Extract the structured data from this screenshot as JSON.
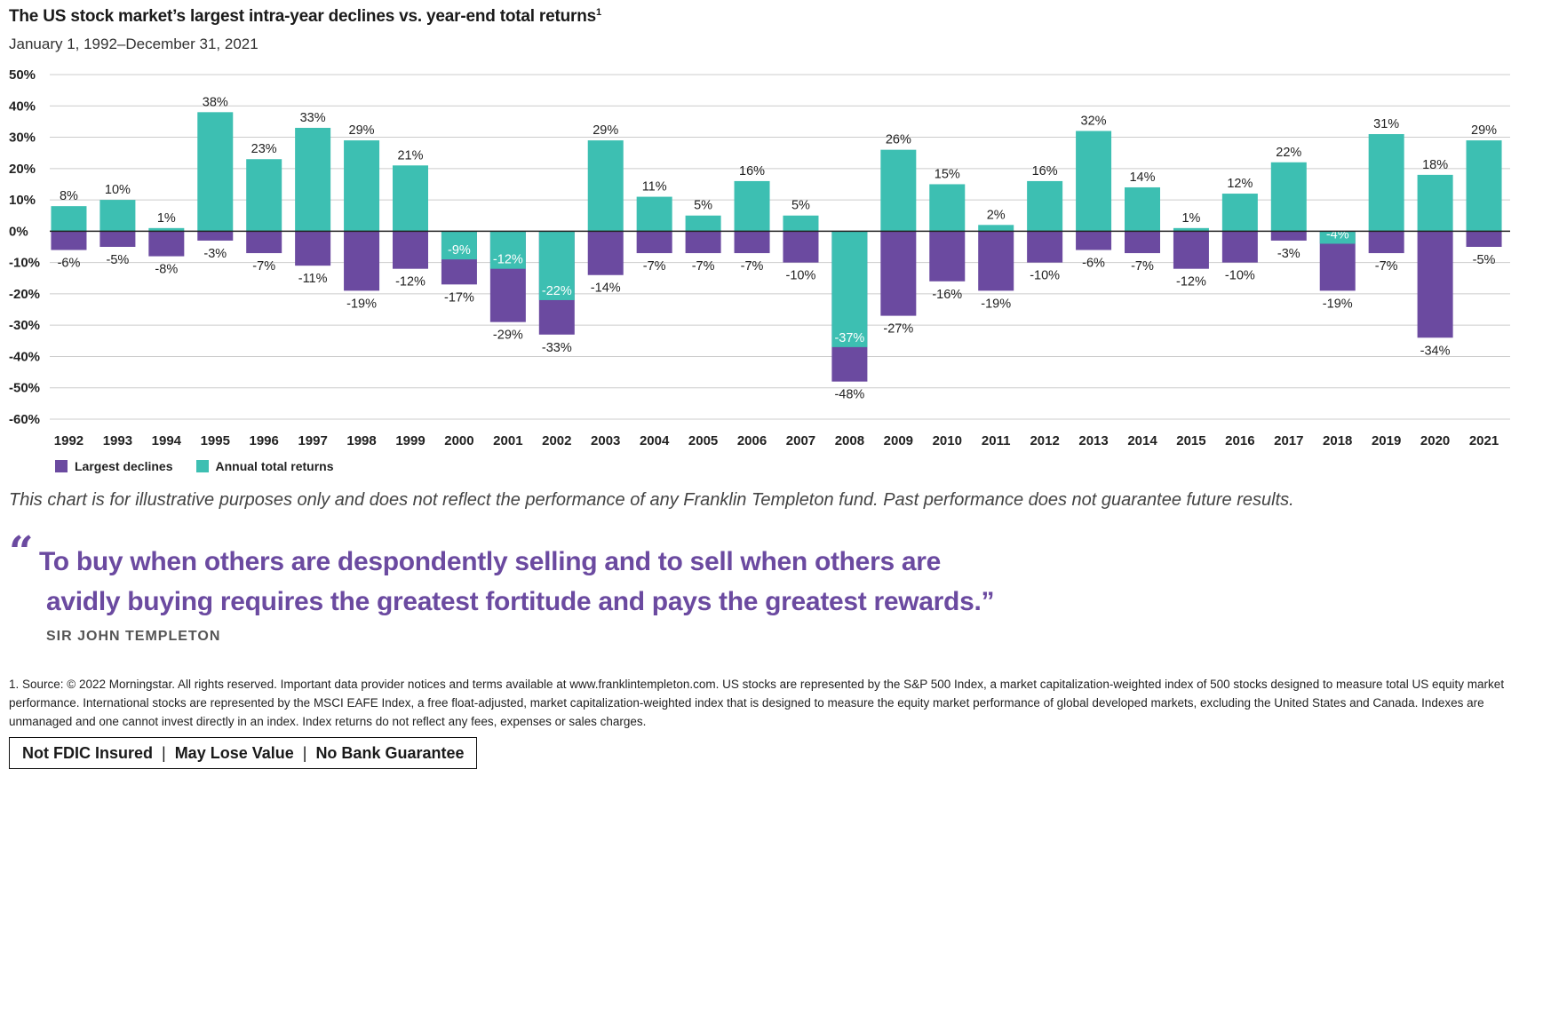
{
  "title": "The US stock market’s largest intra-year declines vs. year-end total returns",
  "title_footnote_marker": "1",
  "subtitle": "January 1, 1992–December 31, 2021",
  "colors": {
    "declines": "#6b4aa0",
    "returns": "#3dbfb2",
    "grid": "#cccccc",
    "zero_line": "#222222",
    "quote": "#6b4aa0"
  },
  "legend": {
    "declines_label": "Largest declines",
    "returns_label": "Annual total returns"
  },
  "chart_data": {
    "type": "bar",
    "ylim": [
      -60,
      50
    ],
    "y_ticks": [
      50,
      40,
      30,
      20,
      10,
      0,
      -10,
      -20,
      -30,
      -40,
      -50,
      -60
    ],
    "y_tick_labels": [
      "50%",
      "40%",
      "30%",
      "20%",
      "10%",
      "0%",
      "-10%",
      "-20%",
      "-30%",
      "-40%",
      "-50%",
      "-60%"
    ],
    "grid": true,
    "legend_position": "bottom-left",
    "categories": [
      "1992",
      "1993",
      "1994",
      "1995",
      "1996",
      "1997",
      "1998",
      "1999",
      "2000",
      "2001",
      "2002",
      "2003",
      "2004",
      "2005",
      "2006",
      "2007",
      "2008",
      "2009",
      "2010",
      "2011",
      "2012",
      "2013",
      "2014",
      "2015",
      "2016",
      "2017",
      "2018",
      "2019",
      "2020",
      "2021"
    ],
    "series": [
      {
        "name": "Largest declines",
        "values": [
          -6,
          -5,
          -8,
          -3,
          -7,
          -11,
          -19,
          -12,
          -17,
          -29,
          -33,
          -14,
          -7,
          -7,
          -7,
          -10,
          -48,
          -27,
          -16,
          -19,
          -10,
          -6,
          -7,
          -12,
          -10,
          -3,
          -19,
          -7,
          -34,
          -5
        ]
      },
      {
        "name": "Annual total returns",
        "values": [
          8,
          10,
          1,
          38,
          23,
          33,
          29,
          21,
          -9,
          -12,
          -22,
          29,
          11,
          5,
          16,
          5,
          -37,
          26,
          15,
          2,
          16,
          32,
          14,
          1,
          12,
          22,
          -4,
          31,
          18,
          29
        ]
      }
    ]
  },
  "disclaimer": "This chart is for illustrative purposes only and does not reflect the performance of any Franklin Templeton fund. Past performance does not guarantee future results.",
  "quote": {
    "open_mark": "“",
    "line1": "To buy when others are despondently selling and to sell when others are",
    "line2": "avidly buying requires the greatest fortitude and pays the greatest rewards.”",
    "author": "SIR JOHN TEMPLETON"
  },
  "footnote": "1. Source: © 2022 Morningstar. All rights reserved. Important data provider notices and terms available at www.franklintempleton.com. US stocks are represented by the S&P 500 Index, a market capitalization-weighted index of 500 stocks designed to measure total US equity market performance. International stocks are represented by the MSCI EAFE Index, a free float-adjusted, market capitalization-weighted index that is designed to measure the equity market performance of global developed markets, excluding the United States and Canada. Indexes are unmanaged and one cannot invest directly in an index. Index returns do not reflect any fees, expenses or sales charges.",
  "fdic": {
    "item1": "Not FDIC Insured",
    "item2": "May Lose Value",
    "item3": "No Bank Guarantee",
    "separator": "|"
  }
}
